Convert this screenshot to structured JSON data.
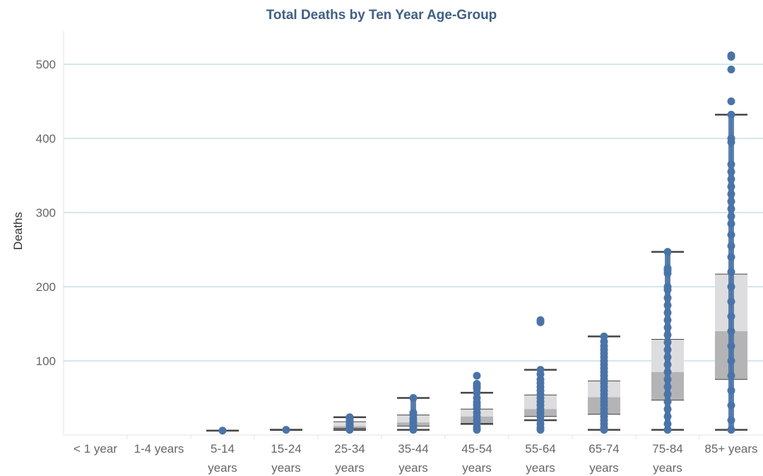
{
  "chart_data": {
    "type": "box",
    "title": "Total Deaths by Ten Year Age-Group",
    "xlabel": "",
    "ylabel": "Deaths",
    "ylim": [
      0,
      550
    ],
    "yticks": [
      100,
      200,
      300,
      400,
      500
    ],
    "grid": true,
    "legend": "none",
    "categories": [
      [
        "< 1 year"
      ],
      [
        "1-4 years"
      ],
      [
        "5-14",
        "years"
      ],
      [
        "15-24",
        "years"
      ],
      [
        "25-34",
        "years"
      ],
      [
        "35-44",
        "years"
      ],
      [
        "45-54",
        "years"
      ],
      [
        "55-64",
        "years"
      ],
      [
        "65-74",
        "years"
      ],
      [
        "75-84",
        "years"
      ],
      [
        "85+ years"
      ]
    ],
    "boxes": [
      null,
      null,
      {
        "whisker_low": 6,
        "q1": 6,
        "median": 6,
        "q3": 6,
        "whisker_high": 6
      },
      {
        "whisker_low": 7,
        "q1": 7,
        "median": 7,
        "q3": 7,
        "whisker_high": 7
      },
      {
        "whisker_low": 7,
        "q1": 9,
        "median": 12,
        "q3": 18,
        "whisker_high": 24
      },
      {
        "whisker_low": 7,
        "q1": 12,
        "median": 17,
        "q3": 27,
        "whisker_high": 50
      },
      {
        "whisker_low": 15,
        "q1": 15,
        "median": 25,
        "q3": 35,
        "whisker_high": 57
      },
      {
        "whisker_low": 20,
        "q1": 25,
        "median": 35,
        "q3": 54,
        "whisker_high": 88
      },
      {
        "whisker_low": 7,
        "q1": 28,
        "median": 51,
        "q3": 73,
        "whisker_high": 133
      },
      {
        "whisker_low": 7,
        "q1": 47,
        "median": 85,
        "q3": 129,
        "whisker_high": 247
      },
      {
        "whisker_low": 7,
        "q1": 75,
        "median": 140,
        "q3": 217,
        "whisker_high": 432
      }
    ],
    "points": [
      [],
      [],
      [
        6
      ],
      [
        7
      ],
      [
        7,
        10,
        13,
        16,
        20,
        22,
        24
      ],
      [
        7,
        10,
        14,
        18,
        22,
        27,
        30,
        50
      ],
      [
        7,
        10,
        15,
        20,
        25,
        30,
        36,
        40,
        44,
        50,
        57,
        63,
        66,
        69,
        80
      ],
      [
        7,
        10,
        15,
        20,
        25,
        30,
        35,
        40,
        45,
        50,
        55,
        60,
        65,
        70,
        75,
        82,
        88,
        152,
        155
      ],
      [
        7,
        10,
        15,
        20,
        25,
        30,
        35,
        40,
        45,
        50,
        55,
        60,
        65,
        70,
        75,
        80,
        85,
        90,
        95,
        100,
        105,
        110,
        115,
        120,
        126,
        133
      ],
      [
        7,
        15,
        25,
        35,
        45,
        55,
        65,
        75,
        85,
        95,
        105,
        115,
        125,
        135,
        145,
        155,
        165,
        175,
        185,
        196,
        200,
        218,
        222,
        225,
        247
      ],
      [
        7,
        20,
        40,
        60,
        80,
        100,
        120,
        140,
        160,
        180,
        200,
        220,
        240,
        255,
        270,
        285,
        295,
        305,
        315,
        325,
        335,
        345,
        355,
        365,
        395,
        400,
        432,
        450,
        493,
        510,
        512
      ]
    ]
  },
  "colors": {
    "title": "#3f6186",
    "point": "#4a74a8",
    "box_upper": "#dddddf",
    "box_lower": "#b4b4b6",
    "whisker": "#444444",
    "grid": "#a9cfdd",
    "axis": "#e3e3e3"
  }
}
